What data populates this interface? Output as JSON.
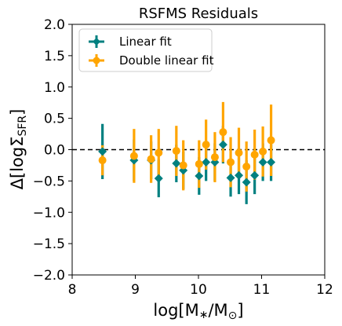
{
  "chart_data": {
    "type": "scatter",
    "title": "RSFMS Residuals",
    "xlabel": "log[M∗/M⊙]",
    "ylabel": "Δ[logΣSFR]",
    "xlim": [
      8,
      12
    ],
    "ylim": [
      -2.0,
      2.0
    ],
    "xticks": [
      "8",
      "9",
      "10",
      "11",
      "12"
    ],
    "yticks": [
      "−2.0",
      "−1.5",
      "−1.0",
      "−0.5",
      "0.0",
      "0.5",
      "1.0",
      "1.5",
      "2.0"
    ],
    "reference_line": {
      "y": 0.0,
      "style": "dashed"
    },
    "legend_position": "top-left",
    "series": [
      {
        "name": "Linear fit",
        "color": "#008080",
        "marker": "diamond",
        "points": [
          {
            "x": 8.48,
            "y": -0.03,
            "err": 0.44
          },
          {
            "x": 8.98,
            "y": -0.17,
            "err": 0.33
          },
          {
            "x": 9.25,
            "y": -0.17,
            "err": 0.3
          },
          {
            "x": 9.37,
            "y": -0.46,
            "err": 0.3
          },
          {
            "x": 9.65,
            "y": -0.22,
            "err": 0.3
          },
          {
            "x": 9.76,
            "y": -0.33,
            "err": 0.3
          },
          {
            "x": 10.01,
            "y": -0.42,
            "err": 0.3
          },
          {
            "x": 10.12,
            "y": -0.2,
            "err": 0.3
          },
          {
            "x": 10.26,
            "y": -0.2,
            "err": 0.3
          },
          {
            "x": 10.39,
            "y": 0.08,
            "err": 0.3
          },
          {
            "x": 10.51,
            "y": -0.45,
            "err": 0.3
          },
          {
            "x": 10.64,
            "y": -0.41,
            "err": 0.3
          },
          {
            "x": 10.76,
            "y": -0.52,
            "err": 0.35
          },
          {
            "x": 10.89,
            "y": -0.41,
            "err": 0.3
          },
          {
            "x": 11.02,
            "y": -0.2,
            "err": 0.3
          },
          {
            "x": 11.15,
            "y": -0.2,
            "err": 0.3
          }
        ]
      },
      {
        "name": "Double linear fit",
        "color": "#ffa500",
        "marker": "circle",
        "points": [
          {
            "x": 8.48,
            "y": -0.17,
            "err": 0.24
          },
          {
            "x": 8.98,
            "y": -0.1,
            "err": 0.43
          },
          {
            "x": 9.25,
            "y": -0.15,
            "err": 0.38
          },
          {
            "x": 9.37,
            "y": -0.05,
            "err": 0.38
          },
          {
            "x": 9.65,
            "y": -0.02,
            "err": 0.4
          },
          {
            "x": 9.76,
            "y": -0.25,
            "err": 0.4
          },
          {
            "x": 10.01,
            "y": -0.23,
            "err": 0.38
          },
          {
            "x": 10.12,
            "y": 0.08,
            "err": 0.4
          },
          {
            "x": 10.26,
            "y": -0.12,
            "err": 0.4
          },
          {
            "x": 10.39,
            "y": 0.28,
            "err": 0.48
          },
          {
            "x": 10.51,
            "y": -0.2,
            "err": 0.4
          },
          {
            "x": 10.64,
            "y": -0.05,
            "err": 0.4
          },
          {
            "x": 10.76,
            "y": -0.27,
            "err": 0.4
          },
          {
            "x": 10.89,
            "y": -0.08,
            "err": 0.4
          },
          {
            "x": 11.02,
            "y": -0.03,
            "err": 0.4
          },
          {
            "x": 11.15,
            "y": 0.15,
            "err": 0.57
          }
        ]
      }
    ]
  }
}
